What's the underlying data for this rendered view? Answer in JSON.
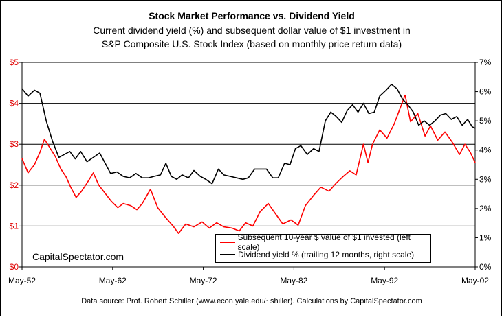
{
  "chart_data": {
    "type": "line",
    "title": "Stock Market Performance vs. Dividend Yield",
    "subtitle_line1": "Current dividend yield (%) and subsequent dollar value of $1 investment in",
    "subtitle_line2": "S&P Composite U.S. Stock Index (based on monthly price return data)",
    "left_axis": {
      "ticks": [
        "$0",
        "$1",
        "$2",
        "$3",
        "$4",
        "$5"
      ],
      "ylim": [
        0,
        5
      ],
      "color": "#e00000"
    },
    "right_axis": {
      "ticks": [
        "0%",
        "1%",
        "2%",
        "3%",
        "4%",
        "5%",
        "6%",
        "7%"
      ],
      "ylim": [
        0,
        7
      ]
    },
    "x_ticks": [
      "May-52",
      "May-62",
      "May-72",
      "May-82",
      "May-92",
      "May-02"
    ],
    "xlim": [
      1952.33,
      2002.33
    ],
    "grid": "horizontal at left-axis dollar levels",
    "series": [
      {
        "name": "Subsequent 10-year $ value of $1 invested (left scale)",
        "axis": "left",
        "color": "#ff0000",
        "points": [
          [
            1952.33,
            2.65
          ],
          [
            1953.0,
            2.3
          ],
          [
            1953.7,
            2.5
          ],
          [
            1954.3,
            2.8
          ],
          [
            1954.8,
            3.12
          ],
          [
            1955.3,
            2.95
          ],
          [
            1956.0,
            2.7
          ],
          [
            1956.6,
            2.4
          ],
          [
            1957.2,
            2.2
          ],
          [
            1957.7,
            1.95
          ],
          [
            1958.3,
            1.7
          ],
          [
            1958.9,
            1.85
          ],
          [
            1959.5,
            2.05
          ],
          [
            1960.2,
            2.3
          ],
          [
            1960.8,
            2.0
          ],
          [
            1961.5,
            1.8
          ],
          [
            1962.2,
            1.6
          ],
          [
            1962.9,
            1.45
          ],
          [
            1963.5,
            1.55
          ],
          [
            1964.3,
            1.5
          ],
          [
            1965.0,
            1.4
          ],
          [
            1965.6,
            1.55
          ],
          [
            1966.5,
            1.9
          ],
          [
            1967.3,
            1.45
          ],
          [
            1968.2,
            1.2
          ],
          [
            1969.0,
            1.0
          ],
          [
            1969.6,
            0.82
          ],
          [
            1970.4,
            1.05
          ],
          [
            1971.3,
            0.98
          ],
          [
            1972.2,
            1.1
          ],
          [
            1973.0,
            0.95
          ],
          [
            1973.8,
            1.08
          ],
          [
            1974.6,
            0.98
          ],
          [
            1975.5,
            0.95
          ],
          [
            1976.3,
            0.88
          ],
          [
            1977.0,
            1.08
          ],
          [
            1977.8,
            1.0
          ],
          [
            1978.6,
            1.35
          ],
          [
            1979.5,
            1.55
          ],
          [
            1980.3,
            1.3
          ],
          [
            1981.1,
            1.05
          ],
          [
            1982.0,
            1.15
          ],
          [
            1982.8,
            1.02
          ],
          [
            1983.6,
            1.5
          ],
          [
            1984.5,
            1.75
          ],
          [
            1985.3,
            1.95
          ],
          [
            1986.2,
            1.85
          ],
          [
            1987.0,
            2.05
          ],
          [
            1987.7,
            2.2
          ],
          [
            1988.5,
            2.35
          ],
          [
            1989.2,
            2.25
          ],
          [
            1990.0,
            3.0
          ],
          [
            1990.5,
            2.55
          ],
          [
            1991.0,
            3.0
          ],
          [
            1991.8,
            3.35
          ],
          [
            1992.6,
            3.15
          ],
          [
            1993.4,
            3.5
          ],
          [
            1994.0,
            3.85
          ],
          [
            1994.6,
            4.2
          ],
          [
            1995.2,
            3.55
          ],
          [
            1996.0,
            3.75
          ],
          [
            1996.8,
            3.2
          ],
          [
            1997.4,
            3.45
          ],
          [
            1998.2,
            3.1
          ],
          [
            1999.0,
            3.3
          ],
          [
            1999.8,
            3.05
          ],
          [
            2000.6,
            2.75
          ],
          [
            2001.2,
            3.0
          ],
          [
            2001.8,
            2.8
          ],
          [
            2002.33,
            2.55
          ]
        ]
      },
      {
        "name": "Dividend yield % (trailing 12 months, right scale)",
        "axis": "right",
        "color": "#000000",
        "points": [
          [
            1952.33,
            6.1
          ],
          [
            1953.0,
            5.85
          ],
          [
            1953.7,
            6.05
          ],
          [
            1954.3,
            5.95
          ],
          [
            1955.0,
            5.0
          ],
          [
            1955.7,
            4.3
          ],
          [
            1956.4,
            3.75
          ],
          [
            1957.0,
            3.85
          ],
          [
            1957.6,
            3.95
          ],
          [
            1958.2,
            3.7
          ],
          [
            1958.8,
            3.95
          ],
          [
            1959.5,
            3.6
          ],
          [
            1960.2,
            3.75
          ],
          [
            1960.9,
            3.9
          ],
          [
            1961.5,
            3.55
          ],
          [
            1962.1,
            3.2
          ],
          [
            1962.8,
            3.25
          ],
          [
            1963.5,
            3.1
          ],
          [
            1964.2,
            3.05
          ],
          [
            1964.9,
            3.2
          ],
          [
            1965.6,
            3.05
          ],
          [
            1966.3,
            3.05
          ],
          [
            1966.9,
            3.1
          ],
          [
            1967.6,
            3.15
          ],
          [
            1968.2,
            3.55
          ],
          [
            1968.8,
            3.1
          ],
          [
            1969.4,
            3.0
          ],
          [
            1970.0,
            3.15
          ],
          [
            1970.7,
            3.05
          ],
          [
            1971.3,
            3.3
          ],
          [
            1972.0,
            3.1
          ],
          [
            1972.6,
            3.0
          ],
          [
            1973.3,
            2.85
          ],
          [
            1974.0,
            3.35
          ],
          [
            1974.6,
            3.15
          ],
          [
            1975.3,
            3.1
          ],
          [
            1976.0,
            3.05
          ],
          [
            1976.7,
            3.0
          ],
          [
            1977.3,
            3.05
          ],
          [
            1978.0,
            3.35
          ],
          [
            1978.7,
            3.35
          ],
          [
            1979.3,
            3.35
          ],
          [
            1980.0,
            3.05
          ],
          [
            1980.6,
            3.05
          ],
          [
            1981.3,
            3.55
          ],
          [
            1981.9,
            3.5
          ],
          [
            1982.5,
            4.05
          ],
          [
            1983.1,
            4.15
          ],
          [
            1983.8,
            3.85
          ],
          [
            1984.5,
            4.05
          ],
          [
            1985.1,
            3.95
          ],
          [
            1985.8,
            5.0
          ],
          [
            1986.4,
            5.3
          ],
          [
            1987.0,
            5.15
          ],
          [
            1987.6,
            4.95
          ],
          [
            1988.2,
            5.35
          ],
          [
            1988.8,
            5.55
          ],
          [
            1989.4,
            5.3
          ],
          [
            1990.0,
            5.6
          ],
          [
            1990.6,
            5.25
          ],
          [
            1991.2,
            5.3
          ],
          [
            1991.8,
            5.85
          ],
          [
            1992.5,
            6.05
          ],
          [
            1993.1,
            6.25
          ],
          [
            1993.7,
            6.1
          ],
          [
            1994.3,
            5.75
          ],
          [
            1994.9,
            5.55
          ],
          [
            1995.5,
            5.3
          ],
          [
            1996.1,
            4.85
          ],
          [
            1996.7,
            5.0
          ],
          [
            1997.3,
            4.85
          ],
          [
            1997.9,
            5.0
          ],
          [
            1998.5,
            5.2
          ],
          [
            1999.1,
            5.25
          ],
          [
            1999.7,
            5.05
          ],
          [
            2000.3,
            5.15
          ],
          [
            2000.9,
            4.85
          ],
          [
            2001.5,
            5.05
          ],
          [
            2002.0,
            4.8
          ],
          [
            2002.33,
            4.75
          ]
        ]
      }
    ]
  },
  "brand": "CapitalSpectator.com",
  "source_note": "Data source: Prof. Robert Schiller (www.econ.yale.edu/~shiller). Calculations by CapitalSpectator.com",
  "legend": {
    "line1": "Subsequent 10-year $ value of $1 invested (left scale)",
    "line2": "Dividend yield % (trailing 12 months, right scale)"
  }
}
